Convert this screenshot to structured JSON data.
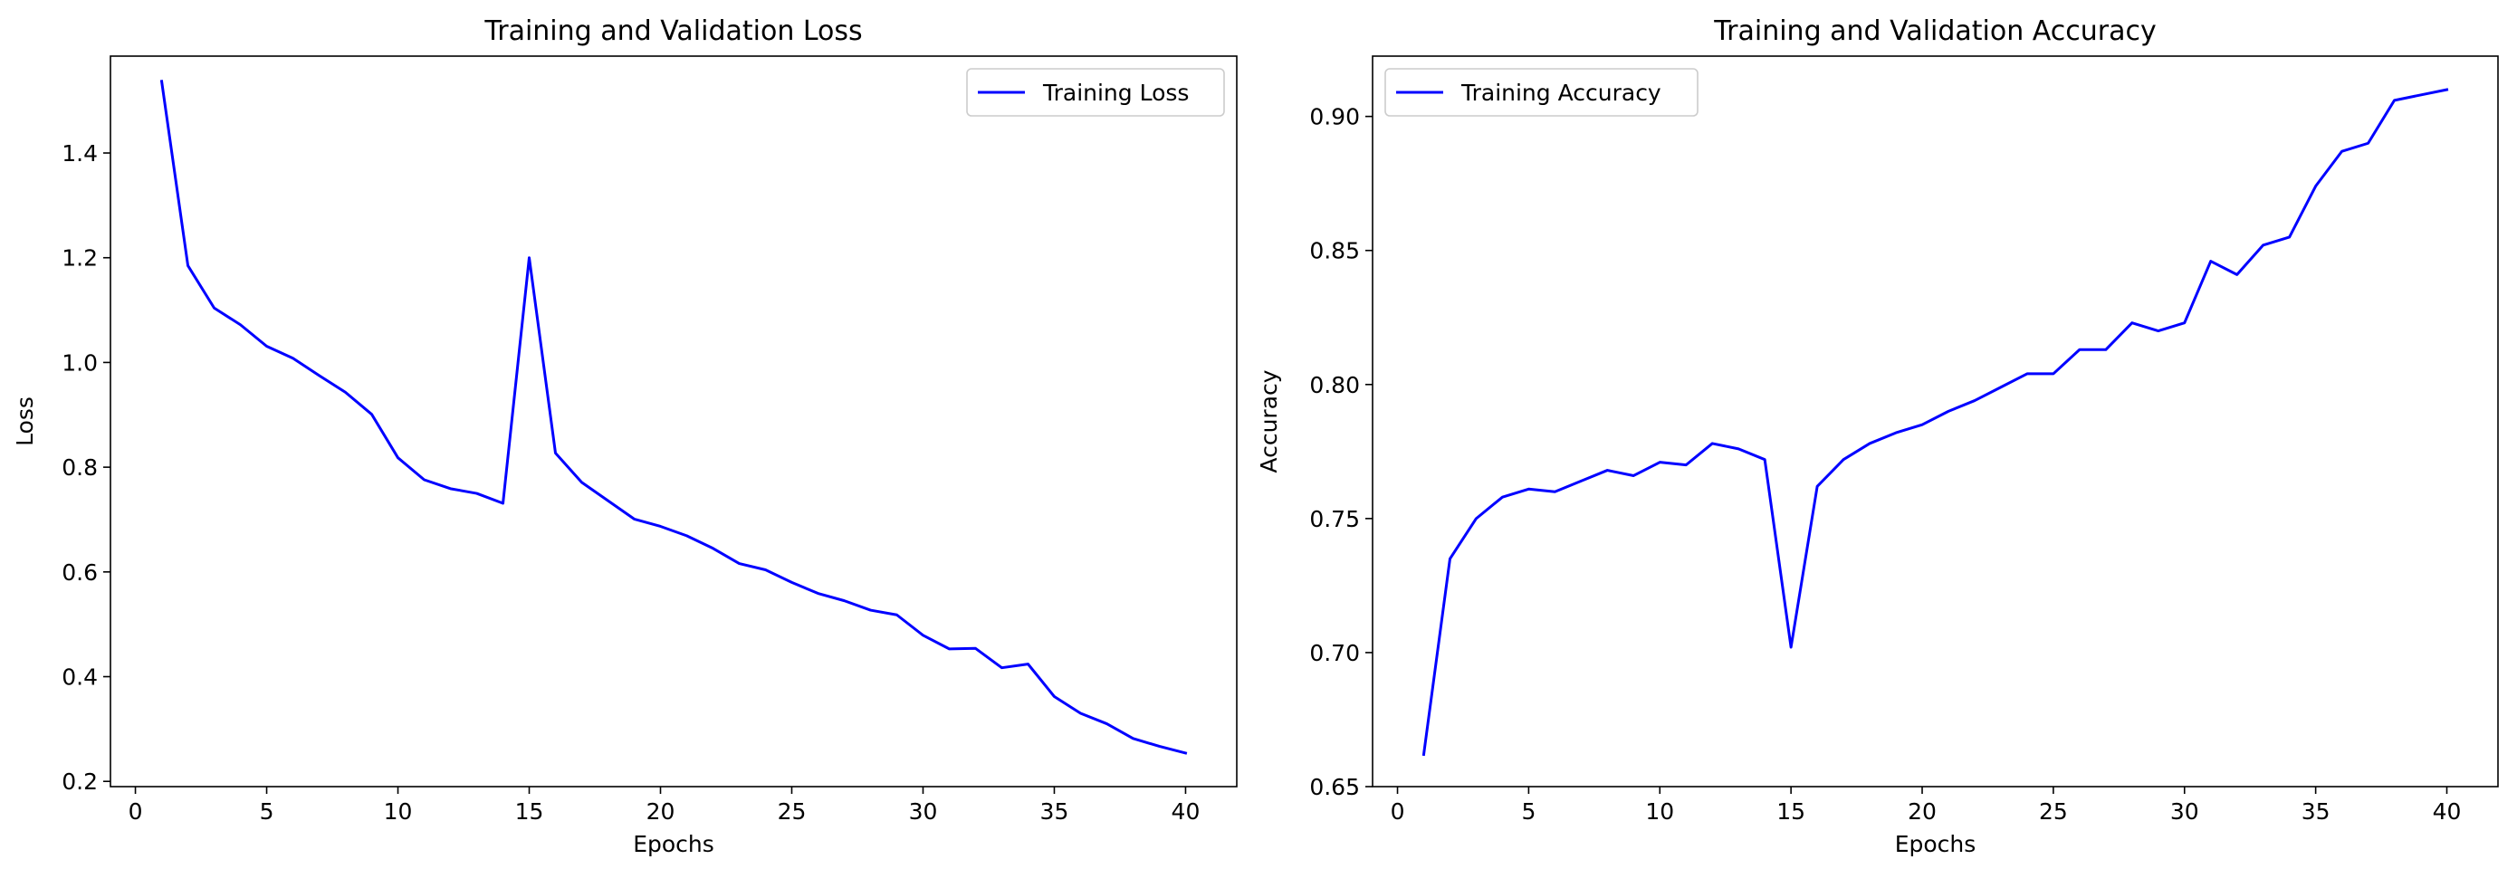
{
  "chart_data": [
    {
      "type": "line",
      "title": "Training and Validation Loss",
      "xlabel": "Epochs",
      "ylabel": "Loss",
      "xlim": [
        -0.95,
        41.95
      ],
      "ylim": [
        0.19,
        1.585
      ],
      "xticks": [
        0,
        5,
        10,
        15,
        20,
        25,
        30,
        35,
        40
      ],
      "xtick_labels": [
        "0",
        "5",
        "10",
        "15",
        "20",
        "25",
        "30",
        "35",
        "40"
      ],
      "yticks": [
        0.2,
        0.4,
        0.6,
        0.8,
        1.0,
        1.2,
        1.4
      ],
      "ytick_labels": [
        "0.2",
        "0.4",
        "0.6",
        "0.8",
        "1.0",
        "1.2",
        "1.4"
      ],
      "grid": false,
      "legend_position": "top-right",
      "color": "#0000ff",
      "series": [
        {
          "name": "Training Loss",
          "x": [
            1,
            2,
            3,
            4,
            5,
            6,
            7,
            8,
            9,
            10,
            11,
            12,
            13,
            14,
            15,
            16,
            17,
            18,
            19,
            20,
            21,
            22,
            23,
            24,
            25,
            26,
            27,
            28,
            29,
            30,
            31,
            32,
            33,
            34,
            35,
            36,
            37,
            38,
            39,
            40
          ],
          "y": [
            1.537,
            1.185,
            1.104,
            1.072,
            1.031,
            1.008,
            0.975,
            0.943,
            0.901,
            0.818,
            0.776,
            0.759,
            0.75,
            0.731,
            1.2,
            0.827,
            0.771,
            0.736,
            0.701,
            0.687,
            0.669,
            0.645,
            0.616,
            0.604,
            0.58,
            0.559,
            0.545,
            0.527,
            0.518,
            0.479,
            0.453,
            0.454,
            0.417,
            0.424,
            0.362,
            0.33,
            0.31,
            0.282,
            0.267,
            0.254
          ]
        }
      ]
    },
    {
      "type": "line",
      "title": "Training and Validation Accuracy",
      "xlabel": "Epochs",
      "ylabel": "Accuracy",
      "xlim": [
        -0.95,
        41.95
      ],
      "ylim": [
        0.65,
        0.9225
      ],
      "xticks": [
        0,
        5,
        10,
        15,
        20,
        25,
        30,
        35,
        40
      ],
      "xtick_labels": [
        "0",
        "5",
        "10",
        "15",
        "20",
        "25",
        "30",
        "35",
        "40"
      ],
      "yticks": [
        0.65,
        0.7,
        0.75,
        0.8,
        0.85,
        0.9
      ],
      "ytick_labels": [
        "0.65",
        "0.70",
        "0.75",
        "0.80",
        "0.85",
        "0.90"
      ],
      "grid": false,
      "legend_position": "top-left",
      "color": "#0000ff",
      "series": [
        {
          "name": "Training Accuracy",
          "x": [
            1,
            2,
            3,
            4,
            5,
            6,
            7,
            8,
            9,
            10,
            11,
            12,
            13,
            14,
            15,
            16,
            17,
            18,
            19,
            20,
            21,
            22,
            23,
            24,
            25,
            26,
            27,
            28,
            29,
            30,
            31,
            32,
            33,
            34,
            35,
            36,
            37,
            38,
            39,
            40
          ],
          "y": [
            0.662,
            0.735,
            0.75,
            0.758,
            0.761,
            0.76,
            0.764,
            0.768,
            0.766,
            0.771,
            0.77,
            0.778,
            0.776,
            0.772,
            0.702,
            0.762,
            0.772,
            0.778,
            0.782,
            0.785,
            0.79,
            0.794,
            0.799,
            0.804,
            0.804,
            0.813,
            0.813,
            0.823,
            0.82,
            0.823,
            0.846,
            0.841,
            0.852,
            0.855,
            0.874,
            0.887,
            0.89,
            0.906,
            0.908,
            0.91
          ]
        }
      ]
    }
  ]
}
